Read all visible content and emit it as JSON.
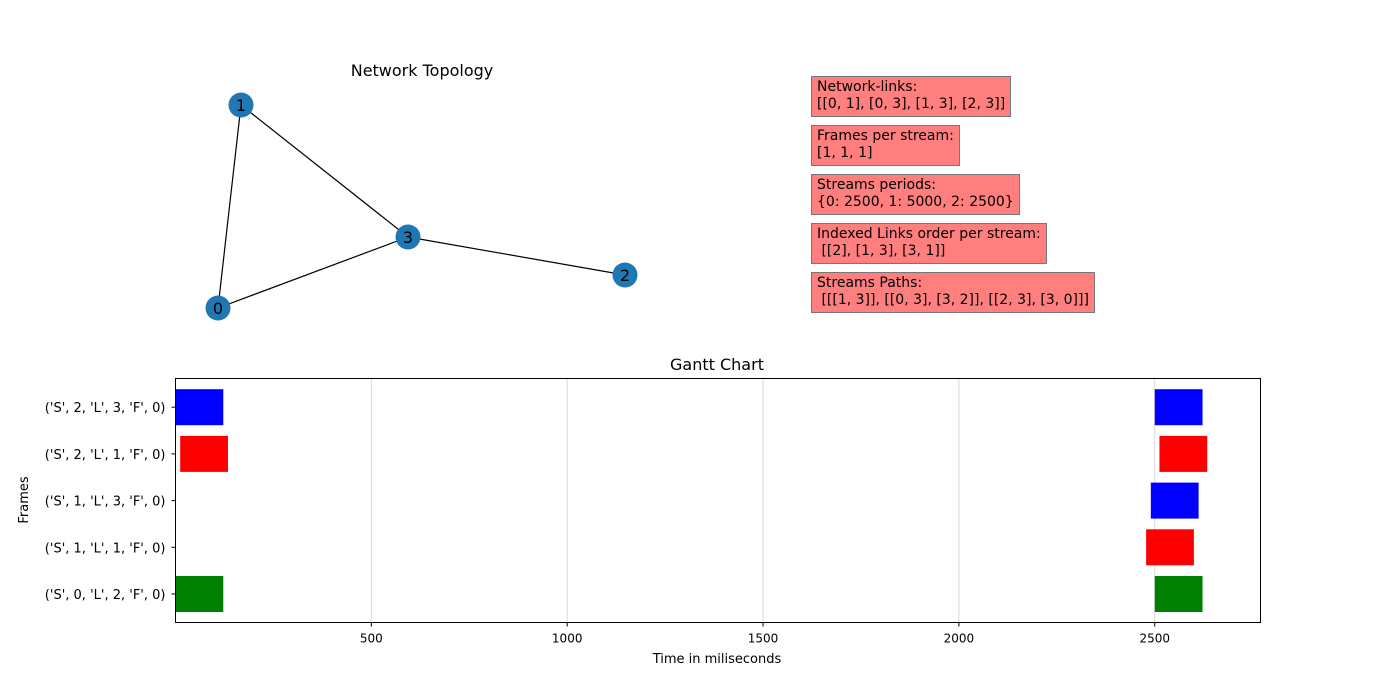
{
  "topology": {
    "title": "Network Topology",
    "nodes": [
      "0",
      "1",
      "2",
      "3"
    ],
    "edges": [
      [
        0,
        1
      ],
      [
        0,
        3
      ],
      [
        1,
        3
      ],
      [
        2,
        3
      ]
    ],
    "node_color": "#1f77b4"
  },
  "info": [
    {
      "heading": "Network-links:",
      "value": "[[0, 1], [0, 3], [1, 3], [2, 3]]"
    },
    {
      "heading": "Frames per stream:",
      "value": "[1, 1, 1]"
    },
    {
      "heading": "Streams periods:",
      "value": "{0: 2500, 1: 5000, 2: 2500}"
    },
    {
      "heading": "Indexed Links order per stream:",
      "value": " [[2], [1, 3], [3, 1]]"
    },
    {
      "heading": "Streams Paths:",
      "value": " [[[1, 3]], [[0, 3], [3, 2]], [[2, 3], [3, 0]]]"
    }
  ],
  "info_box_color": "#ff7f7f",
  "chart_data": {
    "type": "gantt",
    "title": "Gantt Chart",
    "xlabel": "Time in miliseconds",
    "ylabel": "Frames",
    "xlim": [
      0,
      2770
    ],
    "xticks": [
      500,
      1000,
      1500,
      2000,
      2500
    ],
    "grid": "x",
    "categories": [
      "('S', 0, 'L', 2, 'F', 0)",
      "('S', 1, 'L', 1, 'F', 0)",
      "('S', 1, 'L', 3, 'F', 0)",
      "('S', 2, 'L', 1, 'F', 0)",
      "('S', 2, 'L', 3, 'F', 0)"
    ],
    "bars": [
      {
        "row": 0,
        "start": 0,
        "duration": 122,
        "color": "#008000"
      },
      {
        "row": 0,
        "start": 2500,
        "duration": 122,
        "color": "#008000"
      },
      {
        "row": 1,
        "start": 2478,
        "duration": 122,
        "color": "#ff0000"
      },
      {
        "row": 2,
        "start": 2490,
        "duration": 122,
        "color": "#0000ff"
      },
      {
        "row": 3,
        "start": 12,
        "duration": 122,
        "color": "#ff0000"
      },
      {
        "row": 3,
        "start": 2512,
        "duration": 122,
        "color": "#ff0000"
      },
      {
        "row": 4,
        "start": 0,
        "duration": 122,
        "color": "#0000ff"
      },
      {
        "row": 4,
        "start": 2500,
        "duration": 122,
        "color": "#0000ff"
      }
    ]
  }
}
